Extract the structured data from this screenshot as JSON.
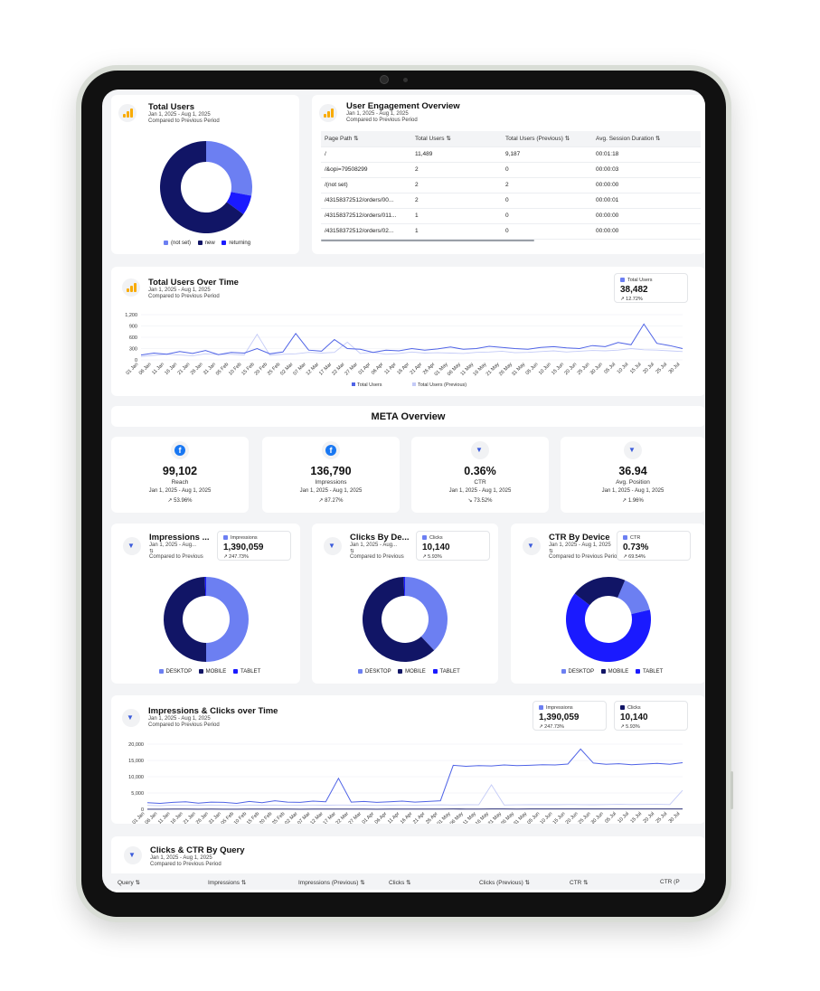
{
  "total_users_card": {
    "title": "Total Users",
    "date_range": "Jan 1, 2025 - Aug 1, 2025",
    "compare": "Compared to Previous Period",
    "legend": [
      "(not set)",
      "new",
      "returning"
    ],
    "colors": [
      "#6c7ff2",
      "#111566",
      "#1a1aff"
    ]
  },
  "engagement": {
    "title": "User Engagement Overview",
    "date_range": "Jan 1, 2025 - Aug 1, 2025",
    "compare": "Compared to Previous Period",
    "columns": [
      "Page Path ⇅",
      "Total Users ⇅",
      "Total Users (Previous) ⇅",
      "Avg. Session Duration ⇅"
    ],
    "rows": [
      [
        "/",
        "11,489",
        "9,187",
        "00:01:18"
      ],
      [
        "/&opi=79508299",
        "2",
        "0",
        "00:00:03"
      ],
      [
        "/(not set)",
        "2",
        "2",
        "00:00:00"
      ],
      [
        "/43158372512/orders/00...",
        "2",
        "0",
        "00:00:01"
      ],
      [
        "/43158372512/orders/011...",
        "1",
        "0",
        "00:00:00"
      ],
      [
        "/43158372512/orders/02...",
        "1",
        "0",
        "00:00:00"
      ]
    ]
  },
  "users_over_time": {
    "title": "Total Users Over Time",
    "date_range": "Jan 1, 2025 - Aug 1, 2025",
    "compare": "Compared to Previous Period",
    "kpi_label": "Total Users",
    "kpi_value": "38,482",
    "kpi_change": "12.72%",
    "legend": [
      "Total Users",
      "Total Users (Previous)"
    ],
    "y_ticks": [
      "0",
      "300",
      "600",
      "900",
      "1,200"
    ],
    "x_ticks": [
      "01 Jan",
      "06 Jan",
      "11 Jan",
      "16 Jan",
      "21 Jan",
      "26 Jan",
      "31 Jan",
      "05 Feb",
      "10 Feb",
      "15 Feb",
      "20 Feb",
      "25 Feb",
      "02 Mar",
      "07 Mar",
      "12 Mar",
      "17 Mar",
      "22 Mar",
      "27 Mar",
      "01 Apr",
      "06 Apr",
      "11 Apr",
      "16 Apr",
      "21 Apr",
      "26 Apr",
      "01 May",
      "06 May",
      "11 May",
      "16 May",
      "21 May",
      "26 May",
      "31 May",
      "05 Jun",
      "10 Jun",
      "15 Jun",
      "20 Jun",
      "25 Jun",
      "30 Jun",
      "05 Jul",
      "10 Jul",
      "15 Jul",
      "20 Jul",
      "25 Jul",
      "30 Jul"
    ]
  },
  "meta_heading": "META Overview",
  "meta_kpis": [
    {
      "value": "99,102",
      "label": "Reach",
      "date": "Jan 1, 2025 - Aug 1, 2025",
      "change": "53.96%",
      "icon": "facebook-icon"
    },
    {
      "value": "136,790",
      "label": "Impressions",
      "date": "Jan 1, 2025 - Aug 1, 2025",
      "change": "87.27%",
      "icon": "facebook-icon"
    },
    {
      "value": "0.36%",
      "label": "CTR",
      "date": "Jan 1, 2025 - Aug 1, 2025",
      "change": "73.52%",
      "icon": "meta-ads-icon"
    },
    {
      "value": "36.94",
      "label": "Avg. Position",
      "date": "Jan 1, 2025 - Aug 1, 2025",
      "change": "1.96%",
      "icon": "meta-ads-icon"
    }
  ],
  "device_cards": [
    {
      "title": "Impressions ...",
      "date": "Jan 1, 2025 - Aug...",
      "compare": "Compared to Previous",
      "kpi_label": "Impressions",
      "kpi_value": "1,390,059",
      "kpi_change": "247.73%"
    },
    {
      "title": "Clicks By De...",
      "date": "Jan 1, 2025 - Aug...",
      "compare": "Compared to Previous",
      "kpi_label": "Clicks",
      "kpi_value": "10,140",
      "kpi_change": "5.93%"
    },
    {
      "title": "CTR By Device",
      "date": "Jan 1, 2025 - Aug 1, 2025",
      "compare": "Compared to Previous Period",
      "kpi_label": "CTR",
      "kpi_value": "0.73%",
      "kpi_change": "69.54%"
    }
  ],
  "device_legend": [
    "DESKTOP",
    "MOBILE",
    "TABLET"
  ],
  "imp_clicks": {
    "title": "Impressions & Clicks over Time",
    "date_range": "Jan 1, 2025 - Aug 1, 2025",
    "compare": "Compared to Previous Period",
    "kpi1_label": "Impressions",
    "kpi1_value": "1,390,059",
    "kpi1_change": "247.73%",
    "kpi2_label": "Clicks",
    "kpi2_value": "10,140",
    "kpi2_change": "5.93%",
    "y_ticks": [
      "0",
      "5,000",
      "10,000",
      "15,000",
      "20,000"
    ],
    "x_ticks": [
      "01 Jan",
      "06 Jan",
      "11 Jan",
      "16 Jan",
      "21 Jan",
      "26 Jan",
      "31 Jan",
      "05 Feb",
      "10 Feb",
      "15 Feb",
      "20 Feb",
      "25 Feb",
      "02 Mar",
      "07 Mar",
      "12 Mar",
      "17 Mar",
      "22 Mar",
      "27 Mar",
      "01 Apr",
      "06 Apr",
      "11 Apr",
      "16 Apr",
      "21 Apr",
      "26 Apr",
      "01 May",
      "06 May",
      "11 May",
      "16 May",
      "21 May",
      "26 May",
      "31 May",
      "05 Jun",
      "10 Jun",
      "15 Jun",
      "20 Jun",
      "25 Jun",
      "30 Jun",
      "05 Jul",
      "10 Jul",
      "15 Jul",
      "20 Jul",
      "25 Jul",
      "30 Jul"
    ],
    "legend": [
      "Impressions",
      "Impressions (Previous)",
      "Clicks",
      "Clicks (Previous)"
    ]
  },
  "query_card": {
    "title": "Clicks & CTR By Query",
    "date_range": "Jan 1, 2025 - Aug 1, 2025",
    "compare": "Compared to Previous Period",
    "columns": [
      "Query ⇅",
      "Impressions ⇅",
      "Impressions (Previous) ⇅",
      "Clicks ⇅",
      "Clicks (Previous) ⇅",
      "CTR ⇅",
      "CTR (P"
    ]
  },
  "chart_data": [
    {
      "type": "pie",
      "title": "Total Users",
      "categories": [
        "(not set)",
        "new",
        "returning"
      ],
      "values": [
        28,
        65,
        7
      ]
    },
    {
      "type": "line",
      "title": "Total Users Over Time",
      "ylim": [
        0,
        1200
      ],
      "series": [
        {
          "name": "Total Users",
          "values": [
            130,
            180,
            150,
            220,
            170,
            250,
            140,
            200,
            180,
            300,
            160,
            210,
            700,
            260,
            230,
            540,
            300,
            280,
            200,
            260,
            240,
            300,
            260,
            290,
            340,
            280,
            300,
            360,
            330,
            300,
            280,
            330,
            350,
            320,
            300,
            380,
            350,
            460,
            400,
            950,
            440,
            380,
            300
          ]
        },
        {
          "name": "Total Users (Previous)",
          "values": [
            90,
            120,
            150,
            130,
            110,
            160,
            140,
            150,
            130,
            680,
            120,
            150,
            160,
            200,
            180,
            200,
            470,
            170,
            200,
            150,
            170,
            210,
            180,
            190,
            180,
            170,
            200,
            210,
            230,
            190,
            200,
            220,
            240,
            210,
            230,
            250,
            240,
            260,
            300,
            270,
            260,
            240,
            220
          ]
        }
      ]
    },
    {
      "type": "pie",
      "title": "Impressions By Device",
      "categories": [
        "DESKTOP",
        "MOBILE",
        "TABLET"
      ],
      "values": [
        50,
        49.5,
        0.5
      ]
    },
    {
      "type": "pie",
      "title": "Clicks By Device",
      "categories": [
        "DESKTOP",
        "MOBILE",
        "TABLET"
      ],
      "values": [
        38,
        61.5,
        0.5
      ]
    },
    {
      "type": "pie",
      "title": "CTR By Device",
      "categories": [
        "DESKTOP",
        "MOBILE",
        "TABLET"
      ],
      "values": [
        15,
        21,
        64
      ]
    },
    {
      "type": "line",
      "title": "Impressions & Clicks over Time",
      "ylim": [
        0,
        20000
      ],
      "series": [
        {
          "name": "Impressions",
          "values": [
            2000,
            1800,
            2100,
            2300,
            1900,
            2200,
            2100,
            1800,
            2400,
            2000,
            2600,
            2200,
            2100,
            2500,
            2300,
            9500,
            2200,
            2400,
            2100,
            2300,
            2500,
            2200,
            2400,
            2600,
            13500,
            13200,
            13400,
            13300,
            13600,
            13400,
            13500,
            13700,
            13600,
            13900,
            18500,
            14200,
            13800,
            14000,
            13700,
            13900,
            14100,
            13800,
            14300
          ]
        },
        {
          "name": "Impressions (Previous)",
          "values": [
            1200,
            1100,
            1300,
            1200,
            1250,
            1300,
            1200,
            1150,
            1300,
            1250,
            1300,
            1200,
            1280,
            1300,
            1250,
            1300,
            1280,
            1300,
            1200,
            1250,
            1300,
            1280,
            1300,
            1350,
            1300,
            1400,
            1350,
            7500,
            1300,
            1350,
            1400,
            1380,
            1400,
            1450,
            1420,
            1400,
            1450,
            1500,
            1450,
            1480,
            1500,
            1450,
            5800
          ]
        },
        {
          "name": "Clicks",
          "values": [
            40,
            38,
            42,
            45,
            40,
            43,
            41,
            39,
            44,
            42,
            46,
            43,
            41,
            45,
            44,
            60,
            42,
            44,
            41,
            43,
            46,
            42,
            44,
            47,
            70,
            68,
            69,
            70,
            71,
            69,
            70,
            72,
            71,
            73,
            90,
            74,
            72,
            73,
            72,
            73,
            74,
            72,
            75
          ]
        },
        {
          "name": "Clicks (Previous)",
          "values": [
            30,
            29,
            31,
            30,
            31,
            32,
            30,
            29,
            31,
            30,
            32,
            31,
            30,
            31,
            30,
            32,
            31,
            30,
            29,
            31,
            32,
            30,
            31,
            32,
            31,
            33,
            32,
            40,
            31,
            32,
            33,
            32,
            33,
            34,
            33,
            32,
            34,
            35,
            34,
            35,
            35,
            34,
            40
          ]
        }
      ]
    }
  ]
}
